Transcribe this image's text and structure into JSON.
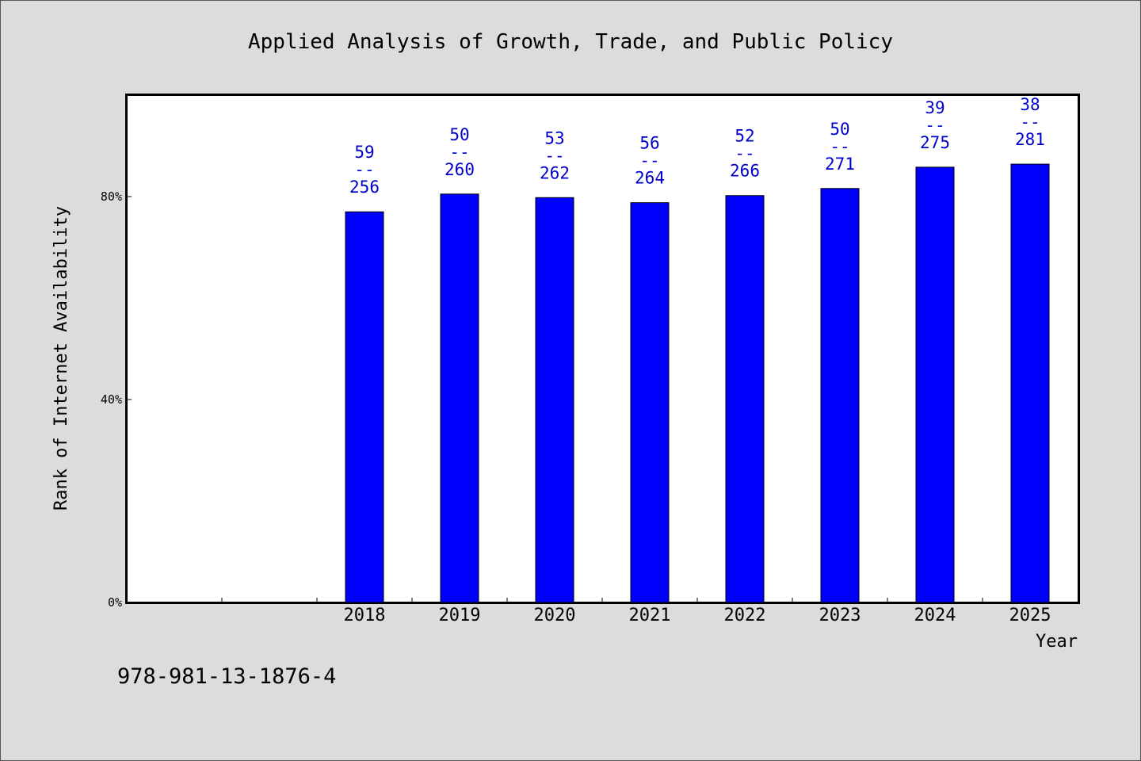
{
  "chart_data": {
    "type": "bar",
    "title": "Applied Analysis of Growth, Trade, and Public Policy",
    "xlabel": "Year",
    "ylabel": "Rank of Internet Availability",
    "categories": [
      "",
      "",
      "2018",
      "2019",
      "2020",
      "2021",
      "2022",
      "2023",
      "2024",
      "2025"
    ],
    "values": [
      null,
      null,
      0.77,
      0.805,
      0.798,
      0.788,
      0.802,
      0.816,
      0.858,
      0.864
    ],
    "data_labels": [
      null,
      null,
      [
        "59",
        "--",
        "256"
      ],
      [
        "50",
        "--",
        "260"
      ],
      [
        "53",
        "--",
        "262"
      ],
      [
        "56",
        "--",
        "264"
      ],
      [
        "52",
        "--",
        "266"
      ],
      [
        "50",
        "--",
        "271"
      ],
      [
        "39",
        "--",
        "275"
      ],
      [
        "38",
        "--",
        "281"
      ]
    ],
    "ylim": [
      0,
      1.0
    ],
    "yticks": [
      0,
      0.4,
      0.8
    ],
    "ytick_labels": [
      "0%",
      "40%",
      "80%"
    ],
    "grid": false,
    "legend": "none",
    "bar_color": "#0000ff",
    "label_color": "#0000cc"
  },
  "footer_text": "978-981-13-1876-4"
}
